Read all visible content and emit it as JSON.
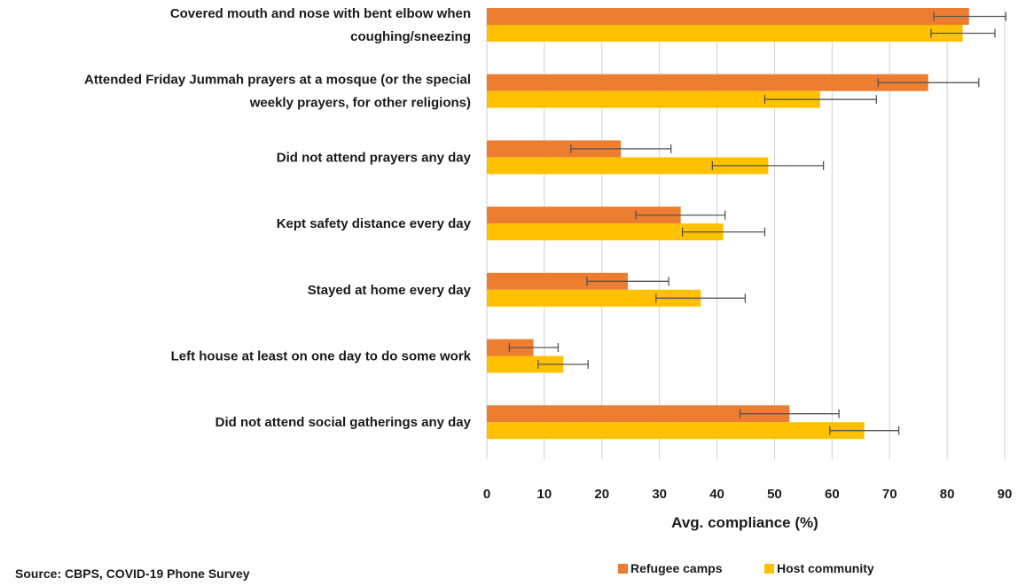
{
  "chart_data": {
    "type": "bar",
    "orientation": "horizontal",
    "categories": [
      [
        "Covered mouth and nose with bent elbow when",
        "coughing/sneezing"
      ],
      [
        "Attended Friday Jummah prayers at a mosque (or the special",
        "weekly prayers, for other religions)"
      ],
      [
        "Did not attend prayers any day"
      ],
      [
        "Kept safety distance every day"
      ],
      [
        "Stayed at home every day"
      ],
      [
        "Left house at least on one day to do some work"
      ],
      [
        "Did not attend social gatherings any day"
      ]
    ],
    "series": [
      {
        "name": "Refugee camps",
        "color": "#ED7D31",
        "values": [
          83.8,
          76.7,
          23.3,
          33.7,
          24.5,
          8.1,
          52.6
        ],
        "error_low": [
          77.7,
          68.0,
          14.6,
          25.9,
          17.4,
          3.9,
          44.0
        ],
        "error_high": [
          90.2,
          85.5,
          32.0,
          41.4,
          31.6,
          12.4,
          61.2
        ]
      },
      {
        "name": "Host community",
        "color": "#FFC000",
        "values": [
          82.7,
          57.9,
          48.9,
          41.1,
          37.2,
          13.3,
          65.6
        ],
        "error_low": [
          77.2,
          48.3,
          39.2,
          34.0,
          29.4,
          8.9,
          59.6
        ],
        "error_high": [
          88.3,
          67.7,
          58.5,
          48.3,
          44.9,
          17.6,
          71.6
        ]
      }
    ],
    "xlim": [
      0,
      90
    ],
    "xticks": [
      "0",
      "10",
      "20",
      "30",
      "40",
      "50",
      "60",
      "70",
      "80",
      "90"
    ],
    "xlabel": "Avg. compliance (%)",
    "grid": "vertical",
    "legend": "bottom-right",
    "source": "Source: CBPS, COVID-19 Phone Survey"
  }
}
